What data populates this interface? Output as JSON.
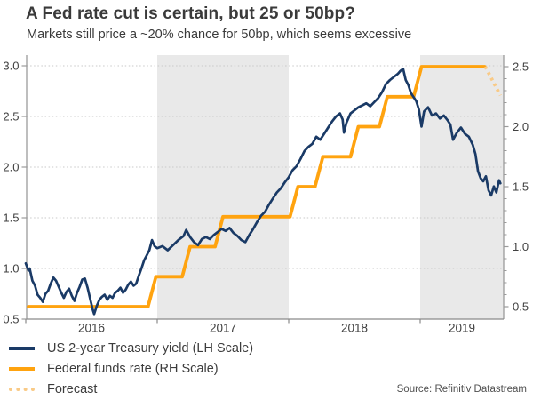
{
  "header": {
    "title": "A Fed rate cut is certain, but 25 or 50bp?",
    "subtitle": "Markets still price a ~20% chance for 50bp, which seems excessive"
  },
  "legend": {
    "items": [
      {
        "id": "treasury-yield",
        "label": "US 2-year Treasury yield (LH Scale)",
        "swatch": "solid-navy"
      },
      {
        "id": "fed-funds",
        "label": "Federal funds rate (RH Scale)",
        "swatch": "solid-orange"
      },
      {
        "id": "forecast",
        "label": "Forecast",
        "swatch": "dotted-light-orange"
      }
    ]
  },
  "source": "Source: Refinitiv Datastream",
  "colors": {
    "navy": "#1a3a66",
    "orange": "#ffa30f",
    "forecast_orange": "#f9ca86",
    "band_gray": "#e9e9e9",
    "grid_gray": "#c9c9c9",
    "axis_gray": "#9b9b9b",
    "text_dark": "#414141"
  },
  "chart_data": {
    "type": "line",
    "title": "A Fed rate cut is certain, but 25 or 50bp?",
    "subtitle": "Markets still price a ~20% chance for 50bp, which seems excessive",
    "x_axis": {
      "tick_years": [
        2016,
        2017,
        2018,
        2019
      ],
      "tick_labels": [
        "2016",
        "2017",
        "2018",
        "2019"
      ],
      "range": [
        2016.0,
        2019.63
      ],
      "shaded_years": [
        2017,
        2019
      ],
      "grid": false
    },
    "y_axis_left": {
      "ticks": [
        "0.5",
        "1.0",
        "1.5",
        "2.0",
        "2.5",
        "3.0"
      ],
      "ylim": [
        0.5,
        3.0
      ],
      "grid": "dotted"
    },
    "y_axis_right": {
      "ticks": [
        "0.5",
        "1.0",
        "1.5",
        "2.0",
        "2.5"
      ],
      "ylim": [
        0.5,
        2.5
      ],
      "minor_tick_step": 0.1
    },
    "series": [
      {
        "id": "fed-funds-line",
        "name": "Federal funds rate (RH Scale)",
        "axis": "right",
        "color": "#ffa30f",
        "width": 3.8,
        "style": "solid",
        "points": [
          [
            2016.02,
            0.5
          ],
          [
            2016.93,
            0.5
          ],
          [
            2016.99,
            0.75
          ],
          [
            2017.19,
            0.75
          ],
          [
            2017.25,
            1.0
          ],
          [
            2017.44,
            1.0
          ],
          [
            2017.5,
            1.25
          ],
          [
            2018.01,
            1.25
          ],
          [
            2018.07,
            1.5
          ],
          [
            2018.2,
            1.5
          ],
          [
            2018.26,
            1.75
          ],
          [
            2018.47,
            1.75
          ],
          [
            2018.53,
            2.0
          ],
          [
            2018.69,
            2.0
          ],
          [
            2018.75,
            2.25
          ],
          [
            2018.95,
            2.25
          ],
          [
            2019.01,
            2.5
          ],
          [
            2019.49,
            2.5
          ]
        ]
      },
      {
        "id": "forecast-line",
        "name": "Forecast",
        "axis": "right",
        "color": "#f9ca86",
        "width": 3.8,
        "style": "dotted",
        "points": [
          [
            2019.495,
            2.5
          ],
          [
            2019.61,
            2.26
          ]
        ]
      },
      {
        "id": "treasury-yield-line",
        "name": "US 2-year Treasury yield (LH Scale)",
        "axis": "left",
        "color": "#1a3a66",
        "width": 2.7,
        "style": "solid",
        "points": [
          [
            2016.0,
            1.05
          ],
          [
            2016.02,
            0.98
          ],
          [
            2016.03,
            1.0
          ],
          [
            2016.05,
            0.88
          ],
          [
            2016.07,
            0.83
          ],
          [
            2016.09,
            0.74
          ],
          [
            2016.11,
            0.71
          ],
          [
            2016.13,
            0.67
          ],
          [
            2016.15,
            0.75
          ],
          [
            2016.17,
            0.78
          ],
          [
            2016.19,
            0.85
          ],
          [
            2016.21,
            0.91
          ],
          [
            2016.23,
            0.88
          ],
          [
            2016.25,
            0.82
          ],
          [
            2016.27,
            0.76
          ],
          [
            2016.29,
            0.71
          ],
          [
            2016.31,
            0.77
          ],
          [
            2016.33,
            0.8
          ],
          [
            2016.35,
            0.73
          ],
          [
            2016.37,
            0.68
          ],
          [
            2016.39,
            0.76
          ],
          [
            2016.41,
            0.82
          ],
          [
            2016.43,
            0.89
          ],
          [
            2016.45,
            0.9
          ],
          [
            2016.47,
            0.81
          ],
          [
            2016.49,
            0.7
          ],
          [
            2016.51,
            0.59
          ],
          [
            2016.52,
            0.55
          ],
          [
            2016.54,
            0.63
          ],
          [
            2016.56,
            0.69
          ],
          [
            2016.58,
            0.72
          ],
          [
            2016.6,
            0.74
          ],
          [
            2016.62,
            0.69
          ],
          [
            2016.64,
            0.73
          ],
          [
            2016.66,
            0.71
          ],
          [
            2016.68,
            0.76
          ],
          [
            2016.7,
            0.78
          ],
          [
            2016.72,
            0.81
          ],
          [
            2016.74,
            0.76
          ],
          [
            2016.76,
            0.79
          ],
          [
            2016.78,
            0.84
          ],
          [
            2016.8,
            0.87
          ],
          [
            2016.82,
            0.83
          ],
          [
            2016.84,
            0.85
          ],
          [
            2016.86,
            0.93
          ],
          [
            2016.88,
            1.0
          ],
          [
            2016.9,
            1.08
          ],
          [
            2016.92,
            1.13
          ],
          [
            2016.94,
            1.18
          ],
          [
            2016.96,
            1.28
          ],
          [
            2016.98,
            1.22
          ],
          [
            2017.0,
            1.2
          ],
          [
            2017.04,
            1.22
          ],
          [
            2017.08,
            1.18
          ],
          [
            2017.12,
            1.23
          ],
          [
            2017.16,
            1.28
          ],
          [
            2017.2,
            1.32
          ],
          [
            2017.22,
            1.38
          ],
          [
            2017.25,
            1.31
          ],
          [
            2017.28,
            1.26
          ],
          [
            2017.31,
            1.23
          ],
          [
            2017.34,
            1.29
          ],
          [
            2017.37,
            1.31
          ],
          [
            2017.4,
            1.29
          ],
          [
            2017.43,
            1.33
          ],
          [
            2017.46,
            1.36
          ],
          [
            2017.49,
            1.39
          ],
          [
            2017.52,
            1.37
          ],
          [
            2017.55,
            1.4
          ],
          [
            2017.58,
            1.35
          ],
          [
            2017.61,
            1.32
          ],
          [
            2017.64,
            1.28
          ],
          [
            2017.67,
            1.26
          ],
          [
            2017.7,
            1.33
          ],
          [
            2017.73,
            1.39
          ],
          [
            2017.76,
            1.46
          ],
          [
            2017.79,
            1.52
          ],
          [
            2017.82,
            1.56
          ],
          [
            2017.85,
            1.63
          ],
          [
            2017.88,
            1.69
          ],
          [
            2017.91,
            1.75
          ],
          [
            2017.94,
            1.79
          ],
          [
            2017.97,
            1.85
          ],
          [
            2018.0,
            1.9
          ],
          [
            2018.03,
            1.97
          ],
          [
            2018.06,
            2.01
          ],
          [
            2018.09,
            2.08
          ],
          [
            2018.12,
            2.16
          ],
          [
            2018.15,
            2.2
          ],
          [
            2018.18,
            2.23
          ],
          [
            2018.21,
            2.3
          ],
          [
            2018.24,
            2.27
          ],
          [
            2018.27,
            2.33
          ],
          [
            2018.3,
            2.39
          ],
          [
            2018.33,
            2.45
          ],
          [
            2018.36,
            2.5
          ],
          [
            2018.39,
            2.53
          ],
          [
            2018.41,
            2.47
          ],
          [
            2018.42,
            2.34
          ],
          [
            2018.44,
            2.44
          ],
          [
            2018.47,
            2.53
          ],
          [
            2018.5,
            2.56
          ],
          [
            2018.53,
            2.59
          ],
          [
            2018.56,
            2.61
          ],
          [
            2018.59,
            2.63
          ],
          [
            2018.62,
            2.6
          ],
          [
            2018.65,
            2.64
          ],
          [
            2018.68,
            2.68
          ],
          [
            2018.71,
            2.74
          ],
          [
            2018.74,
            2.82
          ],
          [
            2018.77,
            2.86
          ],
          [
            2018.8,
            2.89
          ],
          [
            2018.83,
            2.92
          ],
          [
            2018.85,
            2.95
          ],
          [
            2018.87,
            2.97
          ],
          [
            2018.89,
            2.86
          ],
          [
            2018.91,
            2.81
          ],
          [
            2018.93,
            2.73
          ],
          [
            2018.95,
            2.69
          ],
          [
            2018.97,
            2.65
          ],
          [
            2018.99,
            2.57
          ],
          [
            2019.01,
            2.4
          ],
          [
            2019.03,
            2.55
          ],
          [
            2019.06,
            2.59
          ],
          [
            2019.09,
            2.51
          ],
          [
            2019.12,
            2.53
          ],
          [
            2019.15,
            2.48
          ],
          [
            2019.18,
            2.51
          ],
          [
            2019.21,
            2.46
          ],
          [
            2019.23,
            2.42
          ],
          [
            2019.25,
            2.27
          ],
          [
            2019.28,
            2.34
          ],
          [
            2019.31,
            2.39
          ],
          [
            2019.34,
            2.33
          ],
          [
            2019.37,
            2.3
          ],
          [
            2019.4,
            2.22
          ],
          [
            2019.42,
            2.13
          ],
          [
            2019.44,
            1.96
          ],
          [
            2019.46,
            1.89
          ],
          [
            2019.48,
            1.86
          ],
          [
            2019.5,
            1.91
          ],
          [
            2019.52,
            1.77
          ],
          [
            2019.54,
            1.72
          ],
          [
            2019.56,
            1.81
          ],
          [
            2019.58,
            1.75
          ],
          [
            2019.6,
            1.87
          ],
          [
            2019.61,
            1.84
          ]
        ]
      }
    ]
  }
}
